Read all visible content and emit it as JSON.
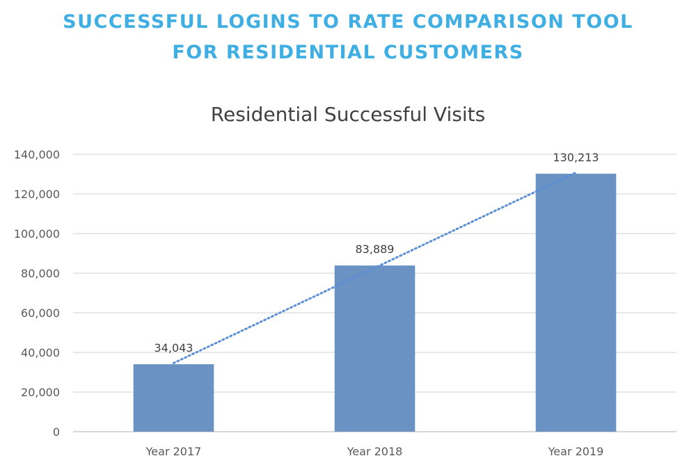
{
  "headline": {
    "line1": "SUCCESSFUL LOGINS TO RATE COMPARISON TOOL",
    "line2": "FOR RESIDENTIAL CUSTOMERS"
  },
  "colors": {
    "headline": "#3eaee3",
    "bar": "#6a93c4",
    "trendline": "#5b8ed6",
    "grid": "#d9d9d9"
  },
  "chart_data": {
    "type": "bar",
    "title": "Residential Successful Visits",
    "categories": [
      "Year 2017",
      "Year 2018",
      "Year 2019"
    ],
    "values": [
      34043,
      83889,
      130213
    ],
    "data_labels": [
      "34,043",
      "83,889",
      "130,213"
    ],
    "ylim": [
      0,
      140000
    ],
    "yticks": [
      0,
      20000,
      40000,
      60000,
      80000,
      100000,
      120000,
      140000
    ],
    "ytick_labels": [
      "0",
      "20,000",
      "40,000",
      "60,000",
      "80,000",
      "100,000",
      "120,000",
      "140,000"
    ],
    "trendline": "linear dotted",
    "grid": true,
    "legend": "none"
  }
}
